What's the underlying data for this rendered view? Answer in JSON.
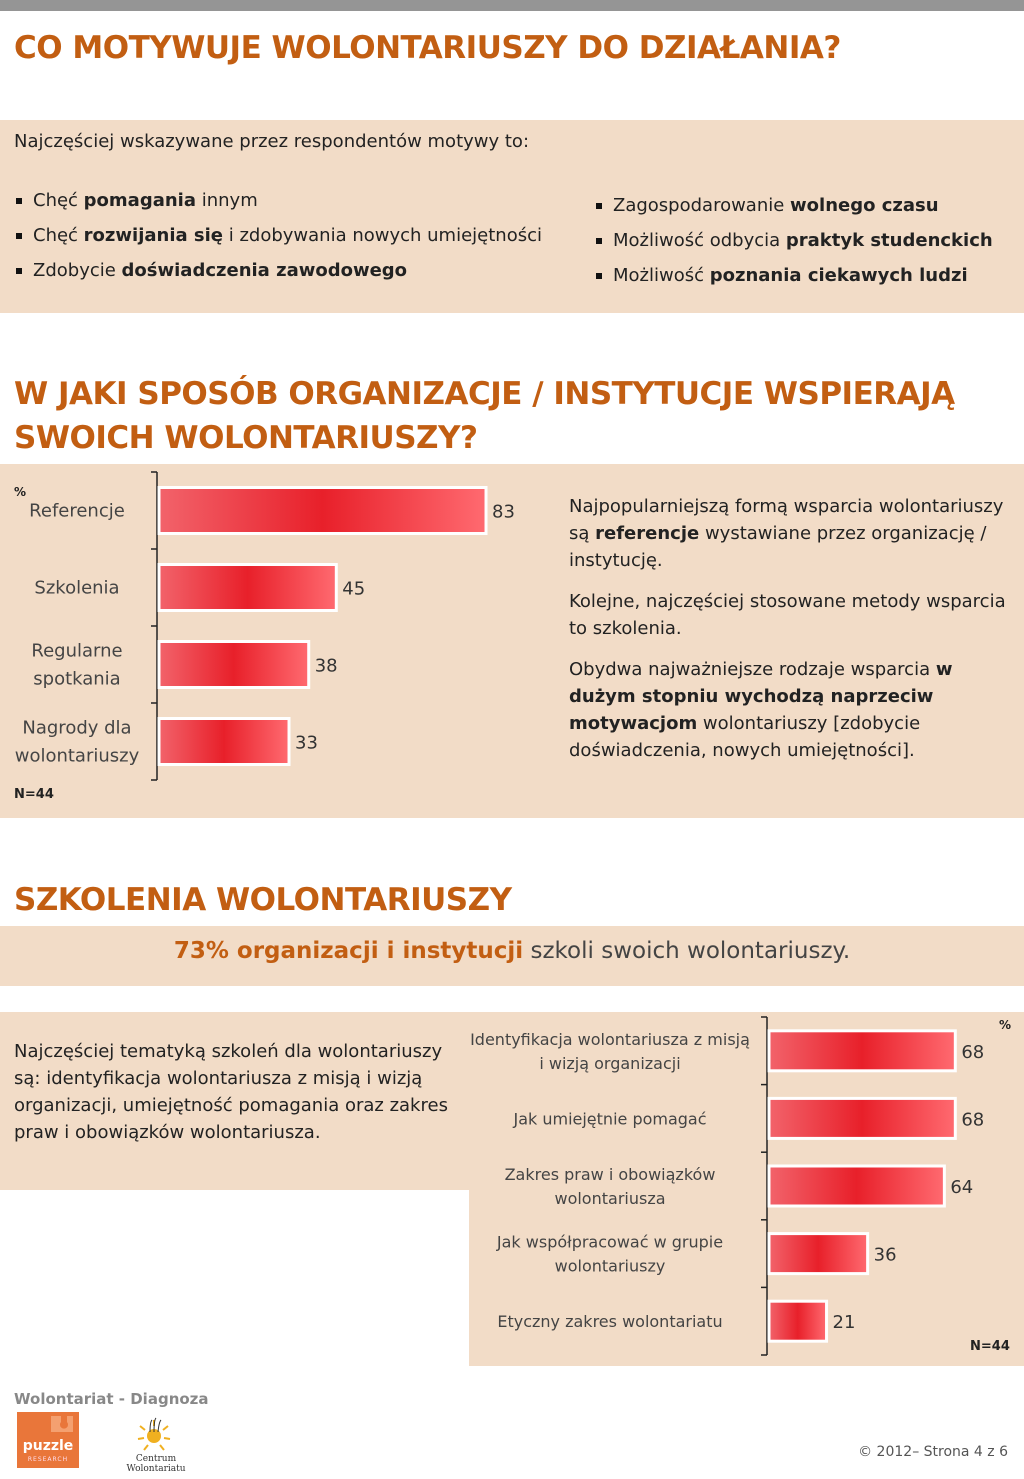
{
  "section1": {
    "title": "CO MOTYWUJE WOLONTARIUSZY DO DZIAŁANIA?",
    "intro": "Najczęściej wskazywane przez respondentów motywy to:",
    "left_bullets": [
      {
        "pre": "Chęć ",
        "bold": "pomagania",
        "post": " innym"
      },
      {
        "pre": "Chęć ",
        "bold": "rozwijania się",
        "post": " i zdobywania nowych umiejętności"
      },
      {
        "pre": "Zdobycie ",
        "bold": "doświadczenia zawodowego",
        "post": ""
      }
    ],
    "right_bullets": [
      {
        "pre": "Zagospodarowanie ",
        "bold": "wolnego czasu",
        "post": ""
      },
      {
        "pre": "Możliwość odbycia ",
        "bold": "praktyk studenckich",
        "post": ""
      },
      {
        "pre": "Możliwość ",
        "bold": "poznania ciekawych ludzi",
        "post": ""
      }
    ]
  },
  "section2": {
    "title_line1": "W JAKI SPOSÓB ORGANIZACJE / INSTYTUCJE WSPIERAJĄ",
    "title_line2": "SWOICH WOLONTARIUSZY?",
    "percent_label": "%",
    "n_label": "N=44",
    "text": {
      "p1_pre": "Najpopularniejszą formą wsparcia wolontariuszy są ",
      "p1_bold": "referencje",
      "p1_post": " wystawiane przez organizację / instytucję.",
      "p2": "Kolejne, najczęściej stosowane metody wsparcia to szkolenia.",
      "p3_pre": "Obydwa najważniejsze rodzaje wsparcia ",
      "p3_bold": "w dużym stopniu wychodzą naprzeciw motywacjom",
      "p3_post": " wolontariuszy [zdobycie doświadczenia, nowych umiejętności]."
    }
  },
  "section3": {
    "title": "SZKOLENIA WOLONTARIUSZY",
    "highlight_bold": "73% organizacji i instytucji",
    "highlight_rest": " szkoli swoich wolontariuszy.",
    "text": "Najczęściej tematyką szkoleń dla wolontariuszy są:  identyfikacja wolontariusza z misją i wizją organizacji, umiejętność pomagania oraz zakres praw i obowiązków wolontariusza.",
    "percent_label": "%",
    "n_label": "N=44"
  },
  "chart_data": [
    {
      "type": "bar",
      "orientation": "horizontal",
      "categories": [
        [
          "Referencje"
        ],
        [
          "Szkolenia"
        ],
        [
          "Regularne",
          "spotkania"
        ],
        [
          "Nagrody dla",
          "wolontariuszy"
        ]
      ],
      "values": [
        83,
        45,
        38,
        33
      ],
      "unit": "%",
      "color": "#e8202a"
    },
    {
      "type": "bar",
      "orientation": "horizontal",
      "categories": [
        [
          "Identyfikacja wolontariusza z misją",
          "i wizją organizacji"
        ],
        [
          "Jak umiejętnie pomagać"
        ],
        [
          "Zakres praw i obowiązków",
          "wolontariusza"
        ],
        [
          "Jak współpracować w grupie",
          "wolontariuszy"
        ],
        [
          "Etyczny zakres wolontariatu"
        ]
      ],
      "values": [
        68,
        68,
        64,
        36,
        21
      ],
      "unit": "%",
      "color": "#e8202a"
    }
  ],
  "footer": {
    "title": "Wolontariat - Diagnoza",
    "logo1_text": "puzzle",
    "logo1_sub": "RESEARCH",
    "logo2_text": "Centrum Wolontariatu",
    "copyright": "© 2012– Strona 4 z 6"
  },
  "colors": {
    "accent": "#c25e12",
    "panel": "#f2dcc7",
    "bar": "#e8202a"
  }
}
